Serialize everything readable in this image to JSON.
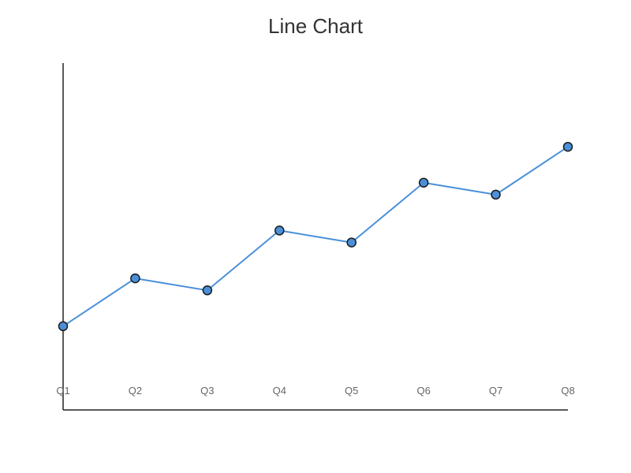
{
  "chart_data": {
    "type": "line",
    "title": "Line Chart",
    "xlabel": "",
    "ylabel": "",
    "categories": [
      "Q1",
      "Q2",
      "Q3",
      "Q4",
      "Q5",
      "Q6",
      "Q7",
      "Q8"
    ],
    "series": [
      {
        "values": [
          12,
          20,
          18,
          28,
          26,
          36,
          34,
          42
        ],
        "color": "#4a90d9"
      }
    ],
    "ylim": [
      -2,
      56
    ],
    "grid": false,
    "legend": "none"
  }
}
